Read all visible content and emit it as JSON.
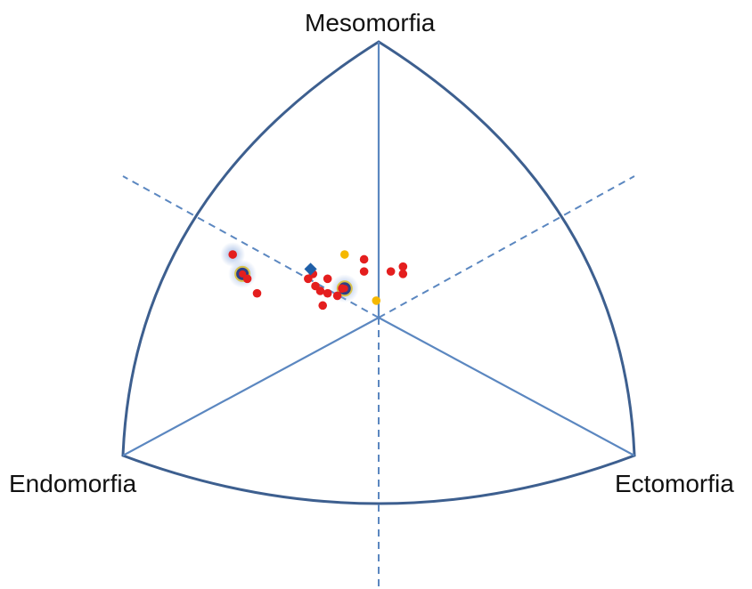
{
  "chart_data": {
    "type": "scatter",
    "title": "",
    "axes_labels": {
      "top": "Mesomorfia",
      "left": "Endomorfia",
      "right": "Ectomorfia"
    },
    "grid": true,
    "colors": {
      "frame": "#3d5f8f",
      "axes": "#5b87c0",
      "red_point": "#e41e1e",
      "yellow_point": "#f5b800",
      "blue_point": "#1f5fa8",
      "halo": "#9db7e3"
    },
    "series": [
      {
        "marker": "circle",
        "color": "#e41e1e",
        "points": [
          {
            "x": -6.0,
            "y": 2.6
          },
          {
            "x": -5.4,
            "y": 1.6
          },
          {
            "x": -5.0,
            "y": 1.0
          },
          {
            "x": -2.9,
            "y": 1.6
          },
          {
            "x": -2.7,
            "y": 1.8
          },
          {
            "x": -2.6,
            "y": 1.3
          },
          {
            "x": -2.4,
            "y": 1.1
          },
          {
            "x": -2.3,
            "y": 0.5
          },
          {
            "x": -2.1,
            "y": 1.6
          },
          {
            "x": -2.1,
            "y": 1.0
          },
          {
            "x": -1.7,
            "y": 0.9
          },
          {
            "x": -1.5,
            "y": 1.2
          },
          {
            "x": -0.6,
            "y": 2.4
          },
          {
            "x": -0.6,
            "y": 1.9
          },
          {
            "x": 0.5,
            "y": 1.9
          },
          {
            "x": 1.0,
            "y": 2.1
          },
          {
            "x": 1.0,
            "y": 1.8
          }
        ]
      },
      {
        "marker": "circle",
        "color": "#f5b800",
        "points": [
          {
            "x": -1.4,
            "y": 2.6
          },
          {
            "x": -0.1,
            "y": 0.7
          }
        ]
      },
      {
        "marker": "diamond",
        "color": "#1f5fa8",
        "points": [
          {
            "x": -2.8,
            "y": 2.0
          }
        ]
      }
    ],
    "highlighted_points": [
      {
        "x": -5.6,
        "y": 1.8
      },
      {
        "x": -1.4,
        "y": 1.2
      }
    ]
  }
}
